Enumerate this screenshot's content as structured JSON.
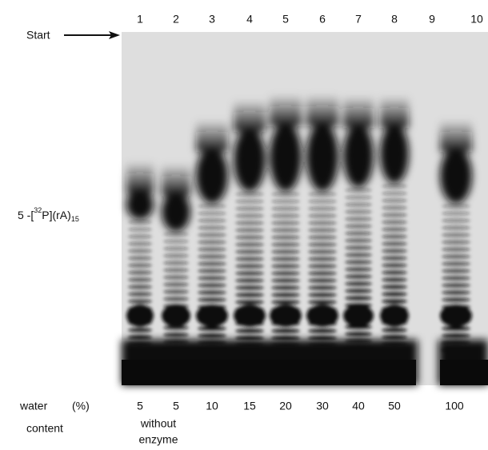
{
  "lane_numbers": [
    "1",
    "2",
    "3",
    "4",
    "5",
    "6",
    "7",
    "8",
    "9",
    "10"
  ],
  "start_label": "Start",
  "band_label": {
    "parts": [
      "5 -[",
      "32",
      "P](rA)",
      "15"
    ]
  },
  "row_label": {
    "line1": "water",
    "unit": "(%)",
    "line2": "content"
  },
  "water_values": [
    "5",
    "5",
    "10",
    "15",
    "20",
    "30",
    "40",
    "50",
    "100"
  ],
  "control_note": [
    "without",
    "enzyme"
  ]
}
